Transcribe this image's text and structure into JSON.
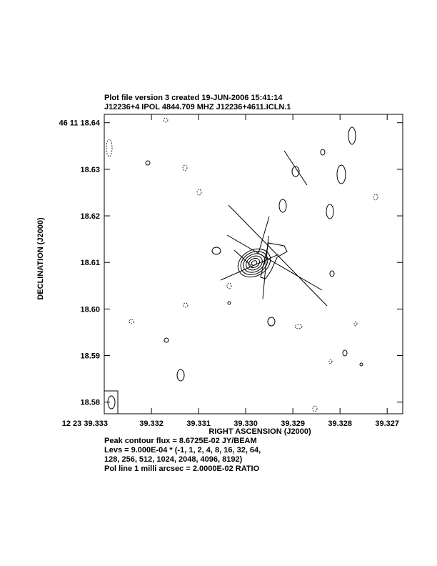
{
  "chart_data": {
    "type": "contour",
    "title_lines": [
      "Plot file version 3  created 19-JUN-2006 15:41:14",
      "J12236+4  IPOL  4844.709 MHZ  J12236+4611.ICLN.1"
    ],
    "xlabel": "RIGHT ASCENSION (J2000)",
    "ylabel": "DECLINATION (J2000)",
    "xlim": [
      39.333,
      39.32667
    ],
    "xticks": [
      {
        "value": 39.333,
        "label": "12 23 39.333"
      },
      39.332,
      39.331,
      {
        "value": 39.33,
        "label": "39.330"
      },
      39.329,
      39.328,
      39.327
    ],
    "ylim": [
      18.5775,
      18.6418
    ],
    "yticks": [
      {
        "value": 18.64,
        "label": "46 11 18.64"
      },
      18.63,
      18.62,
      18.61,
      {
        "value": 18.6,
        "label": "18.60"
      },
      18.59,
      18.58
    ],
    "annotations": [
      "Peak contour flux =  8.6725E-02 JY/BEAM",
      "Levs = 9.000E-04 * (-1, 1, 2, 4, 8, 16, 32, 64,",
      "128, 256, 512, 1024, 2048, 4096, 8192)",
      "Pol line 1 milli arcsec =  2.0000E-02 RATIO"
    ]
  }
}
